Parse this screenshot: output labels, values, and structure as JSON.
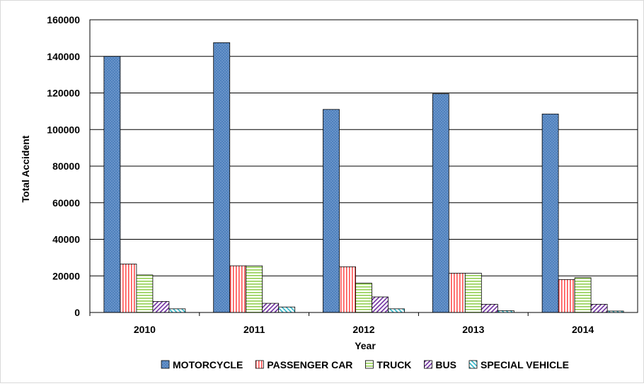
{
  "chart_data": {
    "type": "bar",
    "title": "",
    "xlabel": "Year",
    "ylabel": "Total Accident",
    "categories": [
      "2010",
      "2011",
      "2012",
      "2013",
      "2014"
    ],
    "ylim": [
      0,
      160000
    ],
    "yticks": [
      "0",
      "20000",
      "40000",
      "60000",
      "80000",
      "100000",
      "120000",
      "140000",
      "160000"
    ],
    "grid": true,
    "legend_position": "bottom",
    "series": [
      {
        "name": "MOTORCYCLE",
        "values": [
          140000,
          147500,
          111000,
          119500,
          108500
        ],
        "color": "#4f81bd",
        "pattern": "dots"
      },
      {
        "name": "PASSENGER CAR",
        "values": [
          26500,
          25500,
          25000,
          21500,
          18000
        ],
        "color": "#ff5050",
        "pattern": "vertical"
      },
      {
        "name": "TRUCK",
        "values": [
          20500,
          25500,
          16000,
          21500,
          19000
        ],
        "color": "#92d050",
        "pattern": "horizontal"
      },
      {
        "name": "BUS",
        "values": [
          6000,
          5000,
          8500,
          4500,
          4500
        ],
        "color": "#7030a0",
        "pattern": "diagonal"
      },
      {
        "name": "SPECIAL VEHICLE",
        "values": [
          2000,
          3000,
          2000,
          1000,
          800
        ],
        "color": "#31b6c8",
        "pattern": "diagonal-cross"
      }
    ]
  }
}
